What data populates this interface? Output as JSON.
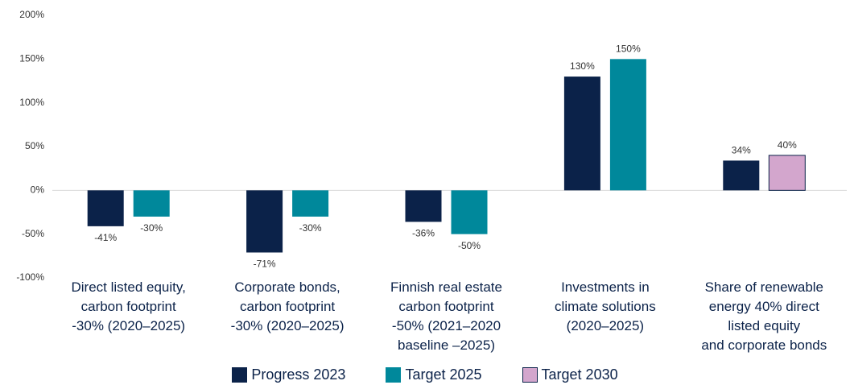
{
  "chart_data": {
    "type": "bar",
    "categories": [
      "Direct listed equity,\ncarbon footprint\n-30% (2020–2025)",
      "Corporate bonds,\ncarbon footprint\n-30% (2020–2025)",
      "Finnish real estate\ncarbon footprint\n-50% (2021–2020\nbaseline –2025)",
      "Investments in\nclimate solutions\n(2020–2025)",
      "Share of renewable\nenergy 40% direct\nlisted equity\nand corporate bonds"
    ],
    "series": [
      {
        "name": "Progress 2023",
        "color": "#0b2249",
        "values": [
          -41,
          -71,
          -36,
          130,
          34
        ],
        "value_labels": [
          "-41%",
          "-71%",
          "-36%",
          "130%",
          "34%"
        ]
      },
      {
        "name": "Target 2025",
        "color": "#00889b",
        "values": [
          -30,
          -30,
          -50,
          150,
          null
        ],
        "value_labels": [
          "-30%",
          "-30%",
          "-50%",
          "150%",
          null
        ]
      },
      {
        "name": "Target 2030",
        "color": "#d3a6cd",
        "values": [
          null,
          null,
          null,
          null,
          40
        ],
        "value_labels": [
          null,
          null,
          null,
          null,
          "40%"
        ]
      }
    ],
    "ylim": [
      -100,
      200
    ],
    "yticks": [
      {
        "value": -100,
        "label": "-100%"
      },
      {
        "value": -50,
        "label": "-50%"
      },
      {
        "value": 0,
        "label": "0%"
      },
      {
        "value": 50,
        "label": "50%"
      },
      {
        "value": 100,
        "label": "100%"
      },
      {
        "value": 150,
        "label": "150%"
      },
      {
        "value": 200,
        "label": "200%"
      }
    ],
    "grid": false
  }
}
